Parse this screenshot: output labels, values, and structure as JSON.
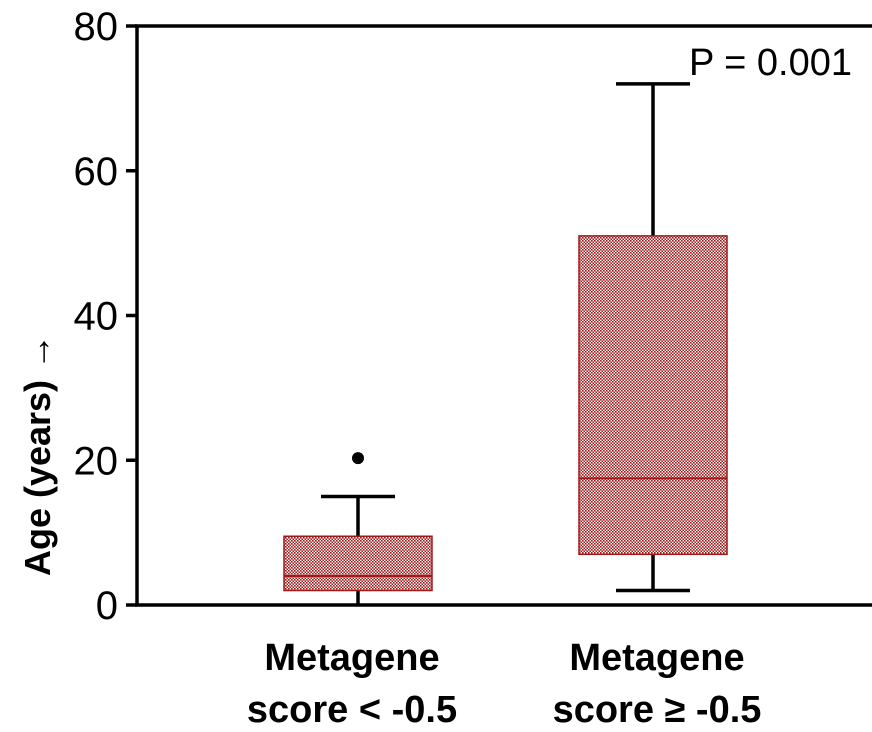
{
  "chart_data": {
    "type": "box",
    "ylabel": "Age (years) →",
    "ylim": [
      0,
      80
    ],
    "yticks": [
      "0",
      "20",
      "40",
      "60",
      "80"
    ],
    "categories": [
      {
        "line1": "Metagene",
        "line2": "score < -0.5"
      },
      {
        "line1": "Metagene",
        "line2": "score ≥ -0.5"
      }
    ],
    "boxes": [
      {
        "whisker_low": 0,
        "q1": 2,
        "median": 4,
        "q3": 9.5,
        "whisker_high": 15,
        "outliers": [
          20.3
        ]
      },
      {
        "whisker_low": 2,
        "q1": 7,
        "median": 17.5,
        "q3": 51,
        "whisker_high": 72,
        "outliers": []
      }
    ],
    "annotation": "P = 0.001",
    "box_color": "#a01818",
    "grid": false
  }
}
